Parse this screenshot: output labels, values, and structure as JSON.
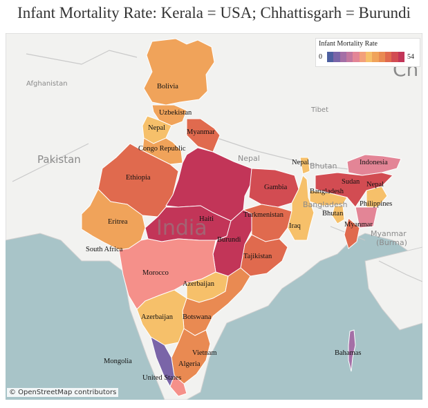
{
  "title": "Infant Mortality Rate: Kerala = USA; Chhattisgarh = Burundi",
  "legend": {
    "title": "Infant Mortality Rate",
    "min": "0",
    "max": "54",
    "colors": [
      "#4c5fa0",
      "#7a65a8",
      "#a46fa6",
      "#c3789f",
      "#e38596",
      "#f3a07a",
      "#f6c06a",
      "#f0a35a",
      "#e98a52",
      "#e06a4e",
      "#d24c52",
      "#c23558"
    ]
  },
  "attribution": "© OpenStreetMap contributors",
  "base_labels": {
    "pakistan": "Pakistan",
    "afghanistan": "Afghanistan",
    "tibet": "Tibet",
    "nepal": "Nepal",
    "bhutan": "Bhutan",
    "bangladesh": "Bangladesh",
    "myanmar": "Myanmar",
    "burma": "(Burma)",
    "india": "India",
    "ch": "Ch"
  },
  "state_labels": {
    "jk": "Bolivia",
    "hp": "Uzbekistan",
    "pb": "Nepal",
    "uk": "Myanmar",
    "hr": "Congo Republic",
    "rj": "Ethiopia",
    "up": "Gambia",
    "br": "Turkmenistan",
    "mp": "Haiti",
    "gj": "Eritrea",
    "dd": "South Africa",
    "cg": "Burundi",
    "jh": "Tajikistan",
    "wb": "Iraq",
    "sk": "Nepal",
    "ar": "Indonesia",
    "as": "Sudan",
    "ml": "Bangladesh",
    "nl": "Nepal",
    "mn": "Philippines",
    "tr": "Bhutan",
    "mz": "Myanmar",
    "mh": "Morocco",
    "tg": "Azerbaijan",
    "goa": "Azerbaijan",
    "ap": "Botswana",
    "tn": "Vietnam",
    "ld": "Mongolia",
    "py": "Algeria",
    "kl": "United States",
    "an": "Bahamas"
  }
}
